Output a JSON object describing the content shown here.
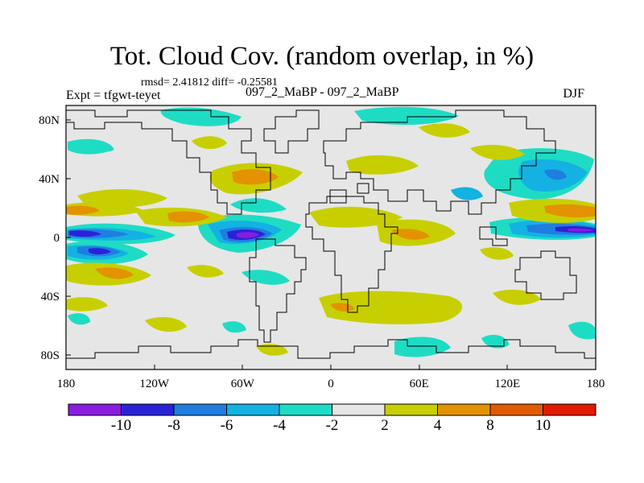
{
  "title": "Tot. Cloud Cov. (random overlap, in %)",
  "stats": {
    "text": "rmsd= 2.41812 diff= -0.25581"
  },
  "experiment": "Expt = tfgwt-teyet",
  "case_label": "097_2_MaBP - 097_2_MaBP",
  "season": "DJF",
  "map_data": {
    "type": "contour-map",
    "projection": "cylindrical-equidistant",
    "lon_range": [
      -180,
      180
    ],
    "lat_range": [
      -90,
      90
    ],
    "x_ticks": [
      "180",
      "120W",
      "60W",
      "0",
      "60E",
      "120E",
      "180"
    ],
    "y_ticks": [
      "80N",
      "40N",
      "0",
      "40S",
      "80S"
    ],
    "colorbar": {
      "levels": [
        "-10",
        "-8",
        "-6",
        "-4",
        "-2",
        "2",
        "4",
        "8",
        "10"
      ],
      "colors": [
        "#8a1be0",
        "#2b22d8",
        "#1f7ee0",
        "#13b2e2",
        "#1edcc4",
        "#e6e6e6",
        "#c8cf00",
        "#e39300",
        "#e25a00",
        "#e11b00"
      ]
    },
    "background_color": "#e6e6e6"
  }
}
